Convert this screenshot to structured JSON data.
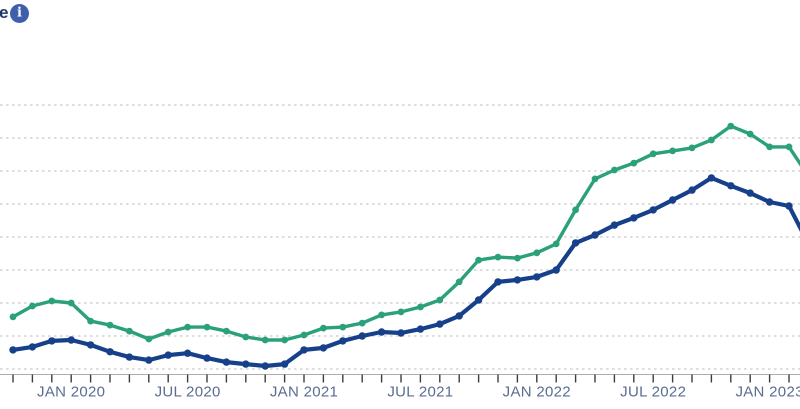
{
  "header": {
    "title_fragment": "e",
    "info_glyph": "i",
    "info_icon_color": "#3f5fad"
  },
  "chart_data": {
    "type": "line",
    "title": "(title cropped out of frame; only trailing letter 'e' and info icon visible)",
    "x": [
      "OCT 2019",
      "NOV 2019",
      "DEC 2019",
      "JAN 2020",
      "FEB 2020",
      "MAR 2020",
      "APR 2020",
      "MAY 2020",
      "JUN 2020",
      "JUL 2020",
      "AUG 2020",
      "SEP 2020",
      "OCT 2020",
      "NOV 2020",
      "DEC 2020",
      "JAN 2021",
      "FEB 2021",
      "MAR 2021",
      "APR 2021",
      "MAY 2021",
      "JUN 2021",
      "JUL 2021",
      "AUG 2021",
      "SEP 2021",
      "OCT 2021",
      "NOV 2021",
      "DEC 2021",
      "JAN 2022",
      "FEB 2022",
      "MAR 2022",
      "APR 2022",
      "MAY 2022",
      "JUN 2022",
      "JUL 2022",
      "AUG 2022",
      "SEP 2022",
      "OCT 2022",
      "NOV 2022",
      "DEC 2022",
      "JAN 2023",
      "FEB 2023"
    ],
    "x_tick_labels_shown": [
      "JAN 2020",
      "JUL 2020",
      "JAN 2021",
      "JUL 2021",
      "JAN 2022",
      "JUL 2022",
      "JAN 2023"
    ],
    "xlabel": "",
    "ylabel": "",
    "y_axis": {
      "tick_labels_visible": false,
      "unit": "gridline steps above bottom dashed gridline (left axis labels cropped out of frame)",
      "gridline_count": 9,
      "grid_style": "dashed horizontal"
    },
    "legend_position": "none visible",
    "series": [
      {
        "name": "green-series",
        "color": "#2aa17b",
        "marker": "circle",
        "values": [
          1.58,
          1.91,
          2.06,
          2.0,
          1.45,
          1.33,
          1.15,
          0.91,
          1.12,
          1.27,
          1.27,
          1.15,
          0.97,
          0.88,
          0.88,
          1.03,
          1.24,
          1.27,
          1.39,
          1.64,
          1.73,
          1.88,
          2.09,
          2.64,
          3.3,
          3.39,
          3.36,
          3.52,
          3.79,
          4.82,
          5.76,
          6.03,
          6.24,
          6.52,
          6.61,
          6.7,
          6.94,
          7.36,
          7.12,
          6.73,
          6.73
        ],
        "offscreen_next_value": 5.85
      },
      {
        "name": "navy-series",
        "color": "#17408b",
        "marker": "circle",
        "values": [
          0.58,
          0.67,
          0.85,
          0.88,
          0.73,
          0.52,
          0.36,
          0.27,
          0.42,
          0.48,
          0.33,
          0.21,
          0.15,
          0.09,
          0.15,
          0.58,
          0.64,
          0.85,
          1.0,
          1.12,
          1.09,
          1.21,
          1.36,
          1.61,
          2.09,
          2.64,
          2.7,
          2.79,
          3.0,
          3.82,
          4.06,
          4.36,
          4.58,
          4.82,
          5.12,
          5.42,
          5.79,
          5.55,
          5.33,
          5.06,
          4.94
        ],
        "offscreen_next_value": 3.8
      }
    ],
    "colors": {
      "gridline": "#cbcbcb",
      "axis_line": "#adadad",
      "tick_mark": "#3d3d3d",
      "tick_label": "#5a6d91"
    }
  }
}
